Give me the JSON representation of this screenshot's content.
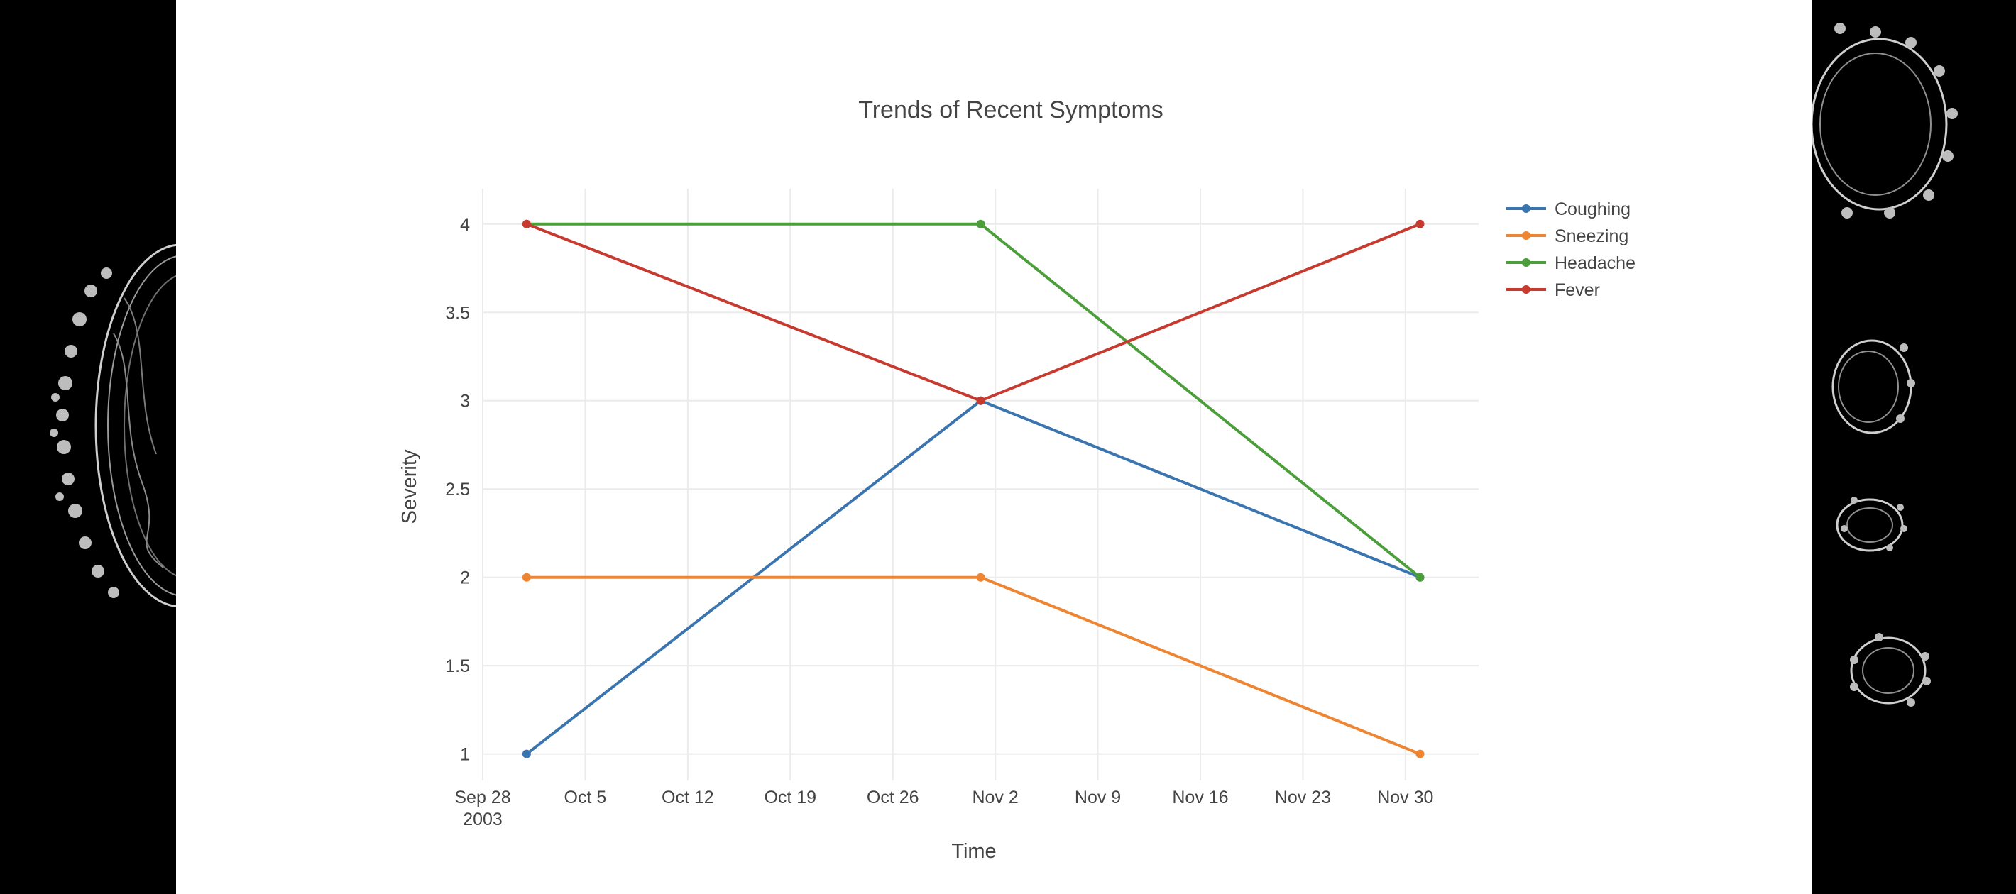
{
  "chart_data": {
    "type": "line",
    "title": "Trends of Recent Symptoms",
    "xlabel": "Time",
    "ylabel": "Severity",
    "x": [
      "2003-10-01",
      "2003-11-01",
      "2003-12-01"
    ],
    "series": [
      {
        "name": "Coughing",
        "values": [
          1,
          3,
          2
        ],
        "color": "#3a75b0"
      },
      {
        "name": "Sneezing",
        "values": [
          2,
          2,
          1
        ],
        "color": "#ee8532"
      },
      {
        "name": "Headache",
        "values": [
          4,
          4,
          2
        ],
        "color": "#4b9e3a"
      },
      {
        "name": "Fever",
        "values": [
          4,
          3,
          4
        ],
        "color": "#c73a30"
      }
    ],
    "xlim": [
      "2003-09-28",
      "2003-12-05"
    ],
    "ylim": [
      0.85,
      4.2
    ],
    "x_ticks": [
      "2003-09-28",
      "2003-10-05",
      "2003-10-12",
      "2003-10-19",
      "2003-10-26",
      "2003-11-02",
      "2003-11-09",
      "2003-11-16",
      "2003-11-23",
      "2003-11-30"
    ],
    "x_tick_labels": [
      "Sep 28",
      "Oct 5",
      "Oct 12",
      "Oct 19",
      "Oct 26",
      "Nov 2",
      "Nov 9",
      "Nov 16",
      "Nov 23",
      "Nov 30"
    ],
    "x_tick_sublabel": "2003",
    "y_ticks": [
      1,
      1.5,
      2,
      2.5,
      3,
      3.5,
      4
    ],
    "y_tick_labels": [
      "1",
      "1.5",
      "2",
      "2.5",
      "3",
      "3.5",
      "4"
    ],
    "grid": true,
    "legend_position": "top-right"
  },
  "colors": {
    "background": "#000000",
    "panel": "#ffffff",
    "grid": "#ebebeb",
    "text": "#444444"
  }
}
